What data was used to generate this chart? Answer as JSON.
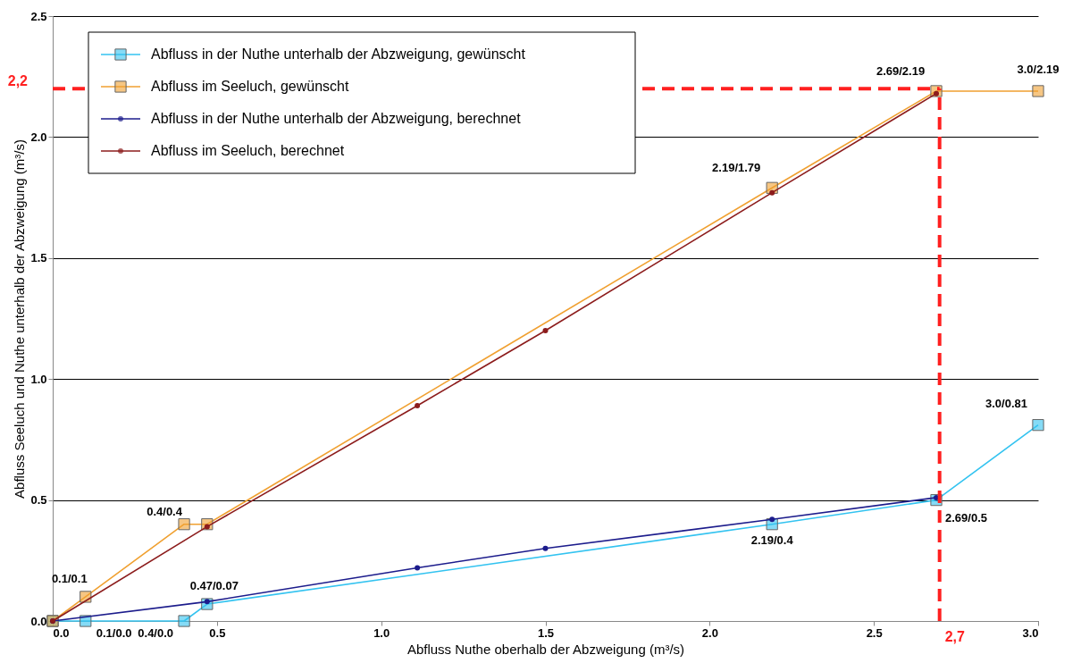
{
  "chart_data": {
    "type": "line",
    "xlabel": "Abfluss Nuthe oberhalb der Abzweigung (m³/s)",
    "ylabel": "Abfluss Seeluch und Nuthe unterhalb der Abzweigung (m³/s)",
    "xlim": [
      0,
      3
    ],
    "ylim": [
      0,
      2.5
    ],
    "xticks": [
      {
        "value": 0,
        "label": "0.0"
      },
      {
        "value": 0.5,
        "label": "0.5"
      },
      {
        "value": 1,
        "label": "1.0"
      },
      {
        "value": 1.5,
        "label": "1.5"
      },
      {
        "value": 2,
        "label": "2.0"
      },
      {
        "value": 2.5,
        "label": "2.5"
      },
      {
        "value": 3,
        "label": "3.0"
      }
    ],
    "yticks": [
      {
        "value": 0,
        "label": "0.0"
      },
      {
        "value": 0.5,
        "label": "0.5"
      },
      {
        "value": 1,
        "label": "1.0"
      },
      {
        "value": 1.5,
        "label": "1.5"
      },
      {
        "value": 2,
        "label": "2.0"
      },
      {
        "value": 2.5,
        "label": "2.5"
      }
    ],
    "grid": "y",
    "legend": "top left",
    "series": [
      {
        "name": "Abfluss in der Nuthe unterhalb der Abzweigung, gewünscht",
        "color": "#33c3f0",
        "marker": "square",
        "x": [
          0,
          0.1,
          0.4,
          0.47,
          2.19,
          2.69,
          3.0
        ],
        "values": [
          0,
          0,
          0,
          0.07,
          0.4,
          0.5,
          0.81
        ]
      },
      {
        "name": "Abfluss im Seeluch, gewünscht",
        "color": "#f0a030",
        "marker": "square",
        "x": [
          0,
          0.1,
          0.4,
          0.47,
          2.19,
          2.69,
          3.0
        ],
        "values": [
          0,
          0.1,
          0.4,
          0.4,
          1.79,
          2.19,
          2.19
        ]
      },
      {
        "name": "Abfluss in der Nuthe unterhalb der Abzweigung, berechnet",
        "color": "#1c1c8c",
        "marker": "circle",
        "x": [
          0,
          0.47,
          1.11,
          1.5,
          2.19,
          2.69
        ],
        "values": [
          0,
          0.08,
          0.22,
          0.3,
          0.42,
          0.51
        ]
      },
      {
        "name": "Abfluss im Seeluch, berechnet",
        "color": "#8c1c1c",
        "marker": "circle",
        "x": [
          0,
          0.47,
          1.11,
          1.5,
          2.19,
          2.69
        ],
        "values": [
          0,
          0.39,
          0.89,
          1.2,
          1.77,
          2.18
        ]
      }
    ],
    "ref_lines": [
      {
        "axis": "y",
        "value": 2.2,
        "label": "2,2",
        "color": "#ff2020",
        "line_style": "dashed"
      },
      {
        "axis": "x",
        "value": 2.7,
        "label": "2,7",
        "color": "#ff2020",
        "line_style": "dashed"
      }
    ],
    "annotations": [
      {
        "text": "0.1/0.1",
        "x": 0.1,
        "y": 0.1
      },
      {
        "text": "0.1/0.0",
        "x": 0.1,
        "y": 0
      },
      {
        "text": "0.4/0.4",
        "x": 0.4,
        "y": 0.4
      },
      {
        "text": "0.4/0.0",
        "x": 0.4,
        "y": 0
      },
      {
        "text": "0.47/0.07",
        "x": 0.47,
        "y": 0.07
      },
      {
        "text": "2.19/1.79",
        "x": 2.19,
        "y": 1.79
      },
      {
        "text": "2.19/0.4",
        "x": 2.19,
        "y": 0.4
      },
      {
        "text": "2.69/2.19",
        "x": 2.69,
        "y": 2.19
      },
      {
        "text": "2.69/0.5",
        "x": 2.69,
        "y": 0.5
      },
      {
        "text": "3.0/2.19",
        "x": 3.0,
        "y": 2.19
      },
      {
        "text": "3.0/0.81",
        "x": 3.0,
        "y": 0.81
      }
    ]
  }
}
